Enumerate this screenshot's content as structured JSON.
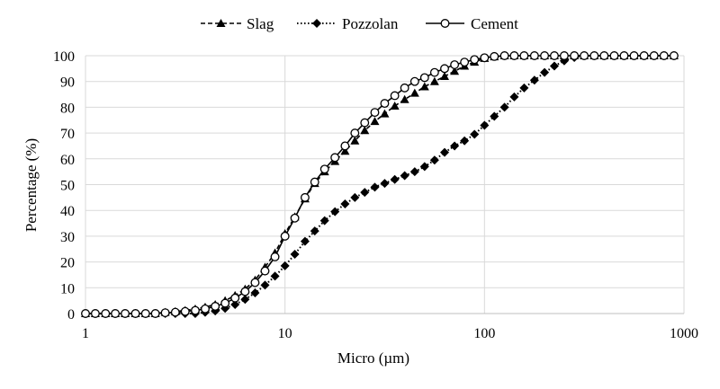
{
  "chart_data": {
    "type": "line",
    "title": "",
    "xlabel": "Micro  (µm)",
    "ylabel": "Percentage (%)",
    "xscale": "log",
    "xlim": [
      1,
      1000
    ],
    "ylim": [
      0,
      100
    ],
    "xticks": [
      "1",
      "10",
      "100",
      "1000"
    ],
    "yticks": [
      "0",
      "10",
      "20",
      "30",
      "40",
      "50",
      "60",
      "70",
      "80",
      "90",
      "100"
    ],
    "grid": true,
    "legend_position": "top-center",
    "x": [
      1,
      1.12,
      1.26,
      1.41,
      1.58,
      1.78,
      2,
      2.24,
      2.51,
      2.82,
      3.16,
      3.55,
      3.98,
      4.47,
      5.01,
      5.62,
      6.31,
      7.08,
      7.94,
      8.91,
      10,
      11.2,
      12.6,
      14.1,
      15.8,
      17.8,
      20,
      22.4,
      25.1,
      28.2,
      31.6,
      35.5,
      39.8,
      44.7,
      50.1,
      56.2,
      63.1,
      70.8,
      79.4,
      89.1,
      100,
      112,
      126,
      141,
      158,
      178,
      200,
      224,
      251,
      282,
      316,
      355,
      398,
      447,
      501,
      562,
      631,
      708,
      794,
      891
    ],
    "series": [
      {
        "name": "Slag",
        "marker": "triangle",
        "dash": "dashed",
        "values": [
          0,
          0,
          0,
          0,
          0,
          0,
          0,
          0,
          0.5,
          0.8,
          1.2,
          1.8,
          2.5,
          3.5,
          5,
          7,
          9.5,
          13,
          18,
          23.5,
          31,
          37.5,
          44.5,
          50.5,
          55,
          59,
          63,
          67,
          71,
          74.5,
          77.5,
          80.5,
          83,
          85.5,
          88,
          90,
          92,
          94,
          96,
          97.5,
          99,
          99.6,
          100,
          100,
          100,
          100,
          100,
          100,
          100,
          100,
          100,
          100,
          100,
          100,
          100,
          100,
          100,
          100,
          100,
          100
        ]
      },
      {
        "name": "Pozzolan",
        "marker": "diamond",
        "dash": "dotted",
        "values": [
          0,
          0,
          0,
          0,
          0,
          0,
          0,
          0,
          0,
          0,
          0,
          0,
          0.5,
          1,
          2,
          3.5,
          5.5,
          8,
          11,
          14.5,
          18.5,
          23,
          28,
          32,
          36,
          39.5,
          42.5,
          45,
          47,
          49,
          50.5,
          52,
          53.5,
          55,
          57,
          59.5,
          62.5,
          65,
          67,
          69.5,
          73,
          76.5,
          80,
          84,
          87.5,
          90.5,
          93.5,
          96,
          98,
          99.3,
          100,
          100,
          100,
          100,
          100,
          100,
          100,
          100,
          100,
          100
        ]
      },
      {
        "name": "Cement",
        "marker": "circle",
        "dash": "solid",
        "values": [
          0,
          0,
          0,
          0,
          0,
          0,
          0,
          0,
          0.3,
          0.5,
          0.8,
          1.2,
          1.8,
          2.8,
          4,
          6,
          8.5,
          12,
          16.5,
          22,
          30,
          37,
          45,
          51,
          56,
          60.5,
          65,
          70,
          74,
          78,
          81.5,
          84.5,
          87.5,
          90,
          91.5,
          93.5,
          95,
          96.5,
          97.5,
          98.5,
          99.2,
          99.7,
          100,
          100,
          100,
          100,
          100,
          100,
          100,
          100,
          100,
          100,
          100,
          100,
          100,
          100,
          100,
          100,
          100,
          100
        ]
      }
    ]
  }
}
